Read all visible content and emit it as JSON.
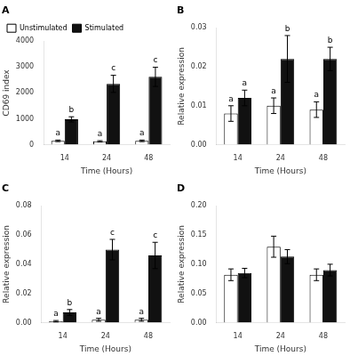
{
  "chart_data": [
    {
      "type": "bar",
      "title": "A",
      "xlabel": "Time (Hours)",
      "ylabel": "CD69 index",
      "categories": [
        "14",
        "24",
        "48"
      ],
      "series": [
        {
          "name": "Unstimulated",
          "color": "#ffffff",
          "values": [
            150,
            130,
            150
          ],
          "errors": [
            30,
            25,
            30
          ],
          "labels": [
            "a",
            "a",
            "a"
          ]
        },
        {
          "name": "Stimulated",
          "color": "#111111",
          "values": [
            980,
            2350,
            2620
          ],
          "errors": [
            100,
            330,
            370
          ],
          "labels": [
            "b",
            "c",
            "c"
          ]
        }
      ],
      "ylim": [
        0,
        4000
      ],
      "yticks": [
        0,
        1000,
        2000,
        3000,
        4000
      ],
      "grid": false,
      "legend": "upper left"
    },
    {
      "type": "bar",
      "title": "B",
      "xlabel": "Time (Hours)",
      "ylabel": "Relative expression",
      "categories": [
        "14",
        "24",
        "48"
      ],
      "series": [
        {
          "name": "Unstimulated",
          "color": "#ffffff",
          "values": [
            0.008,
            0.01,
            0.009
          ],
          "errors": [
            0.002,
            0.002,
            0.002
          ],
          "labels": [
            "a",
            "a",
            "a"
          ]
        },
        {
          "name": "Stimulated",
          "color": "#111111",
          "values": [
            0.012,
            0.022,
            0.022
          ],
          "errors": [
            0.002,
            0.006,
            0.003
          ],
          "labels": [
            "a",
            "b",
            "b"
          ]
        }
      ],
      "ylim": [
        0,
        0.03
      ],
      "yticks": [
        {
          "value": 0,
          "label": "0.00"
        },
        0.01,
        0.02,
        0.03
      ],
      "grid": false
    },
    {
      "type": "bar",
      "title": "C",
      "xlabel": "Time (Hours)",
      "ylabel": "Relative expression",
      "categories": [
        "14",
        "24",
        "48"
      ],
      "series": [
        {
          "name": "Unstimulated",
          "color": "#ffffff",
          "values": [
            0.001,
            0.002,
            0.002
          ],
          "errors": [
            0.0005,
            0.001,
            0.001
          ],
          "labels": [
            "a",
            "a",
            "a"
          ]
        },
        {
          "name": "Stimulated",
          "color": "#111111",
          "values": [
            0.007,
            0.05,
            0.046
          ],
          "errors": [
            0.002,
            0.007,
            0.009
          ],
          "labels": [
            "b",
            "c",
            "c"
          ]
        }
      ],
      "ylim": [
        0,
        0.08
      ],
      "yticks": [
        {
          "value": 0,
          "label": "0.00"
        },
        0.02,
        0.04,
        0.06,
        0.08
      ],
      "grid": false
    },
    {
      "type": "bar",
      "title": "D",
      "xlabel": "Time (Hours)",
      "ylabel": "Relative expression",
      "categories": [
        "14",
        "24",
        "48"
      ],
      "series": [
        {
          "name": "Unstimulated",
          "color": "#ffffff",
          "values": [
            0.082,
            0.13,
            0.082
          ],
          "errors": [
            0.01,
            0.018,
            0.01
          ]
        },
        {
          "name": "Stimulated",
          "color": "#111111",
          "values": [
            0.085,
            0.113,
            0.09
          ],
          "errors": [
            0.008,
            0.012,
            0.01
          ]
        }
      ],
      "ylim": [
        0,
        0.2
      ],
      "yticks": [
        {
          "value": 0,
          "label": "0.00"
        },
        0.05,
        {
          "value": 0.1,
          "label": "0.10"
        },
        0.15,
        {
          "value": 0.2,
          "label": "0.20"
        }
      ],
      "grid": false
    }
  ]
}
